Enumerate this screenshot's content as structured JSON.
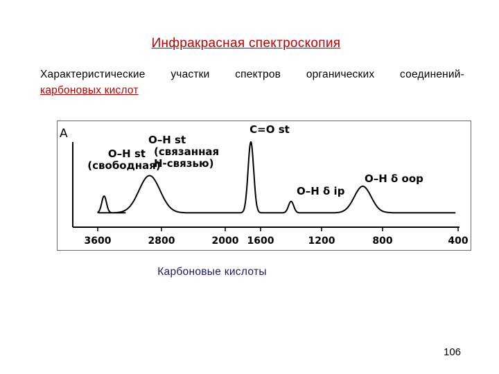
{
  "slide": {
    "title": "Инфракрасная спектроскопия",
    "subtitle_line1": "Характеристические участки спектров органических соединений-",
    "subtitle_line2": "карбоновых кислот",
    "caption": "Карбоновые кислоты",
    "page_number": "106"
  },
  "chart_data": {
    "type": "line",
    "ylabel": "A",
    "xlabel": "",
    "x_ticks": [
      3600,
      2800,
      2000,
      1600,
      1200,
      800,
      400
    ],
    "x_tick_labels": [
      "3600",
      "2800",
      "2000",
      "1600",
      "1200",
      "800",
      "400"
    ],
    "baseline": 0.06,
    "ylim": [
      0,
      1
    ],
    "grid": false,
    "peaks": [
      {
        "x": 3520,
        "height": 0.19,
        "width": 70,
        "labels": [
          "O–H st",
          "(свободная)"
        ]
      },
      {
        "x": 2950,
        "height": 0.42,
        "width": 310,
        "labels": [
          "O–H st",
          "(связанная",
          "H-связью)"
        ]
      },
      {
        "x": 1710,
        "height": 0.8,
        "width": 75,
        "labels": [
          "C=O st"
        ]
      },
      {
        "x": 1400,
        "height": 0.13,
        "width": 40,
        "labels": [
          "O–H δ ip"
        ]
      },
      {
        "x": 930,
        "height": 0.3,
        "width": 130,
        "labels": [
          "O–H δ oop"
        ]
      }
    ]
  }
}
